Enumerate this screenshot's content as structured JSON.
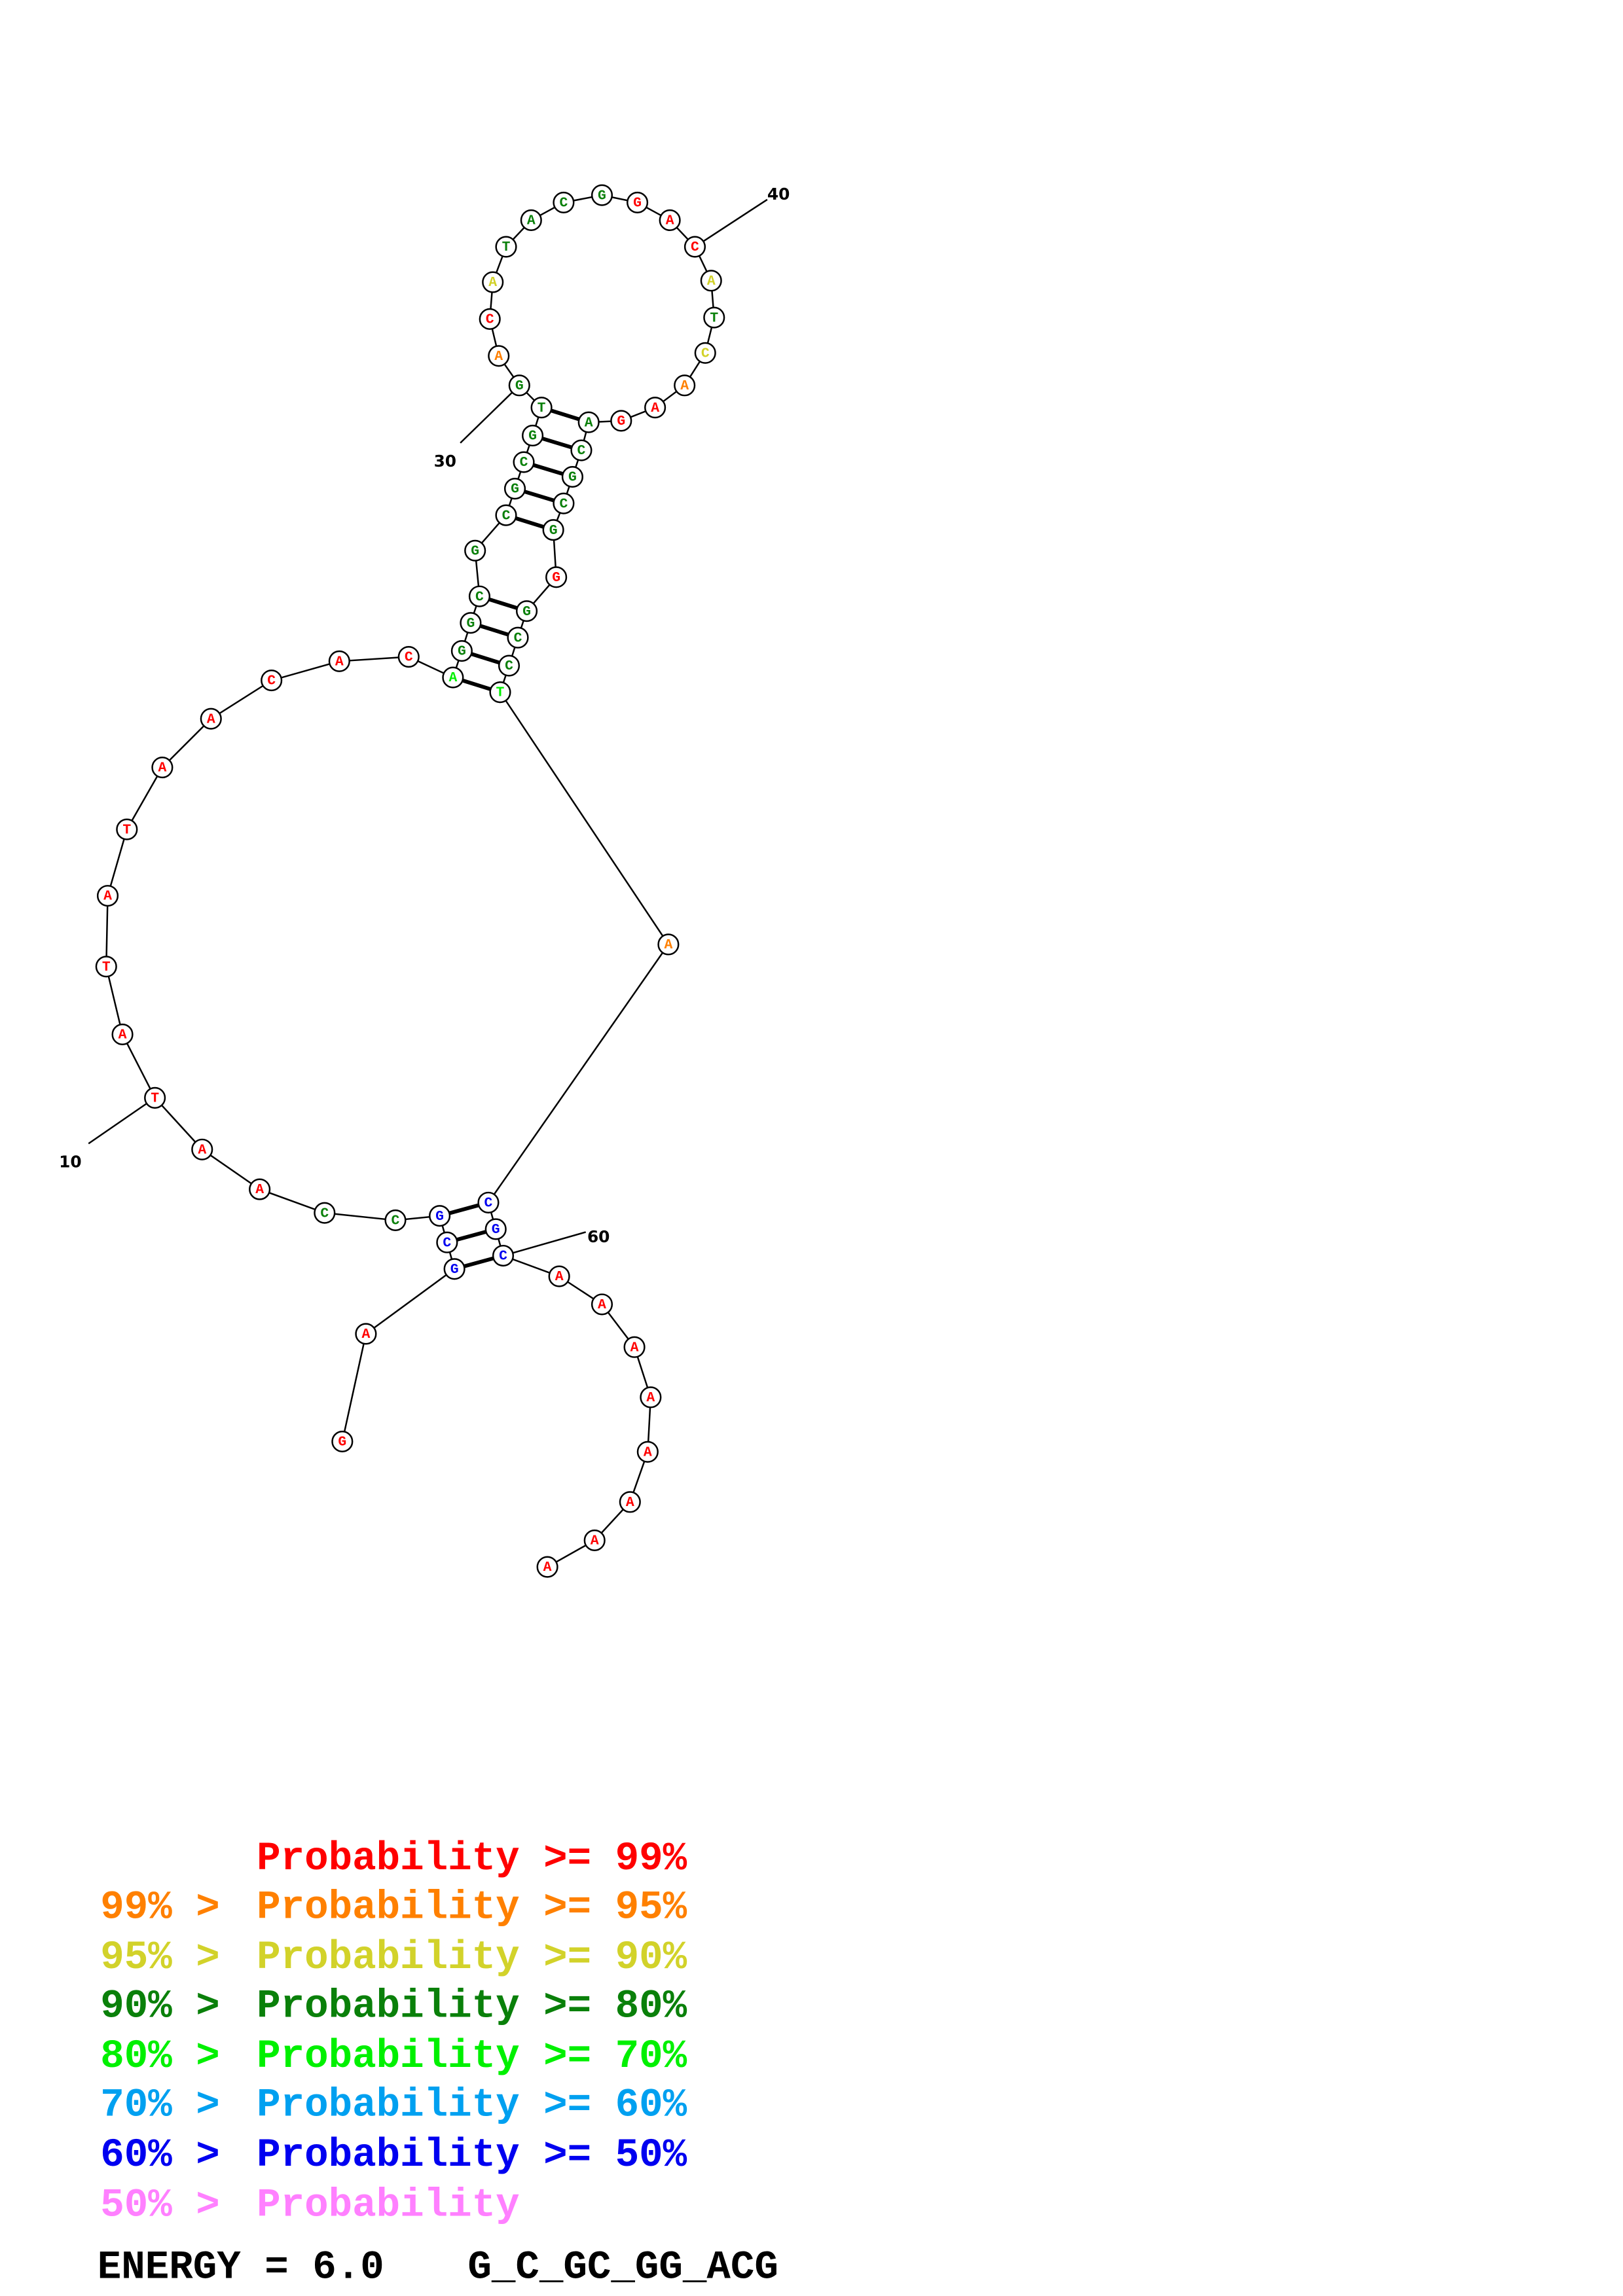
{
  "structure": {
    "sequence": "GAGCGCCAATATATAACACAGGCGCGCGTGACATACGGACATCAAGACGCGGGCCTACGCAAAAAAAA",
    "probability_classes": [
      "red",
      "red",
      "blue",
      "blue",
      "blue",
      "dkgreen",
      "dkgreen",
      "red",
      "red",
      "red",
      "red",
      "red",
      "red",
      "red",
      "red",
      "red",
      "red",
      "red",
      "red",
      "green",
      "dkgreen",
      "dkgreen",
      "dkgreen",
      "dkgreen",
      "dkgreen",
      "dkgreen",
      "dkgreen",
      "dkgreen",
      "dkgreen",
      "dkgreen",
      "orange",
      "red",
      "yellow",
      "dkgreen",
      "dkgreen",
      "dkgreen",
      "dkgreen",
      "red",
      "red",
      "red",
      "yellow",
      "dkgreen",
      "yellow",
      "orange",
      "red",
      "red",
      "dkgreen",
      "dkgreen",
      "dkgreen",
      "dkgreen",
      "dkgreen",
      "red",
      "dkgreen",
      "dkgreen",
      "dkgreen",
      "green",
      "orange",
      "blue",
      "blue",
      "blue",
      "red",
      "red",
      "red",
      "red",
      "red",
      "red",
      "red",
      "red"
    ],
    "pairs": [
      [
        3,
        60
      ],
      [
        4,
        59
      ],
      [
        5,
        58
      ],
      [
        20,
        56
      ],
      [
        21,
        55
      ],
      [
        22,
        54
      ],
      [
        23,
        53
      ],
      [
        25,
        51
      ],
      [
        26,
        50
      ],
      [
        27,
        49
      ],
      [
        28,
        48
      ],
      [
        29,
        47
      ]
    ],
    "position_labels": [
      10,
      30,
      40,
      60
    ]
  },
  "colors": {
    "red": "#ff0000",
    "orange": "#ff8000",
    "yellow": "#d2d22a",
    "dkgreen": "#0a800a",
    "green": "#00f000",
    "sky": "#00a0f0",
    "blue": "#0000f0",
    "pink": "#ff80ff"
  },
  "legend": [
    {
      "prefix": "    ",
      "label": "Probability >= 99%",
      "color": "red"
    },
    {
      "prefix": "99% > ",
      "label": "Probability >= 95%",
      "color": "orange"
    },
    {
      "prefix": "95% > ",
      "label": "Probability >= 90%",
      "color": "yellow"
    },
    {
      "prefix": "90% > ",
      "label": "Probability >= 80%",
      "color": "dkgreen"
    },
    {
      "prefix": "80% > ",
      "label": "Probability >= 70%",
      "color": "green"
    },
    {
      "prefix": "70% > ",
      "label": "Probability >= 60%",
      "color": "sky"
    },
    {
      "prefix": "60% > ",
      "label": "Probability >= 50%",
      "color": "blue"
    },
    {
      "prefix": "50% > ",
      "label": "Probability",
      "color": "pink"
    }
  ],
  "energy": {
    "text": "ENERGY = 6.0",
    "structure_name": "G_C_GC_GG_ACG"
  }
}
